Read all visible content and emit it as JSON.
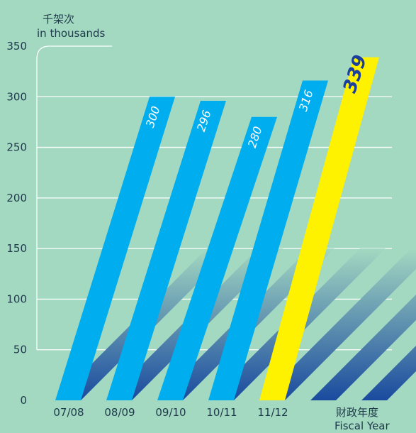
{
  "chart_data": {
    "type": "bar",
    "y_unit_zh": "千架次",
    "y_unit_en": "in thousands",
    "x_title_zh": "財政年度",
    "x_title_en": "Fiscal Year",
    "categories": [
      "07/08",
      "08/09",
      "09/10",
      "10/11",
      "11/12"
    ],
    "values": [
      300,
      296,
      280,
      316,
      339
    ],
    "value_labels": [
      "300",
      "296",
      "280",
      "316",
      "339"
    ],
    "highlight_index": 4,
    "ylim": [
      0,
      350
    ],
    "yticks": [
      0,
      50,
      100,
      150,
      200,
      250,
      300,
      350
    ],
    "grid": true,
    "colors": {
      "background": "#a3d8c1",
      "bar": "#00adef",
      "highlight": "#fff200",
      "highlight_label": "#1a3f9e",
      "grid": "#ffffff",
      "ribbon_top": "#a3d8c1",
      "ribbon_bottom": "#1a4a9e",
      "text": "#1e3a4a"
    }
  }
}
